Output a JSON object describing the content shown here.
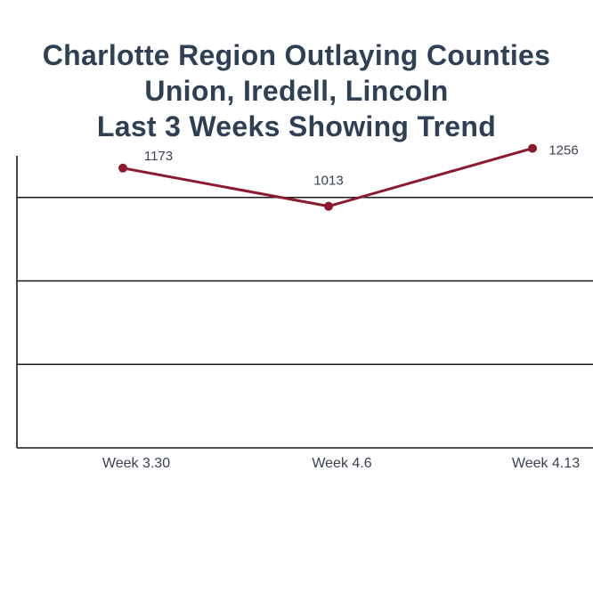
{
  "title_lines": [
    "Charlotte Region Outlaying Counties",
    "Union, Iredell, Lincoln",
    "Last 3 Weeks Showing Trend"
  ],
  "colors": {
    "title": "#2f4055",
    "line": "#8b1a2e",
    "label": "#3a4250",
    "axis": "#1a1a1a"
  },
  "chart_data": {
    "type": "line",
    "title": "Charlotte Region Outlaying Counties Union, Iredell, Lincoln Last 3 Weeks Showing Trend",
    "categories": [
      "Week 3.30",
      "Week 4.6",
      "Week 4.13"
    ],
    "series": [
      {
        "values": [
          1173,
          1013,
          1256
        ]
      }
    ],
    "data_labels": [
      "1173",
      "1013",
      "1256"
    ],
    "xlabel": "",
    "ylabel": "",
    "ylim": [
      0,
      1400
    ],
    "y_gridlines": [
      350,
      700,
      1050,
      1400
    ],
    "grid": true,
    "legend": "none"
  }
}
